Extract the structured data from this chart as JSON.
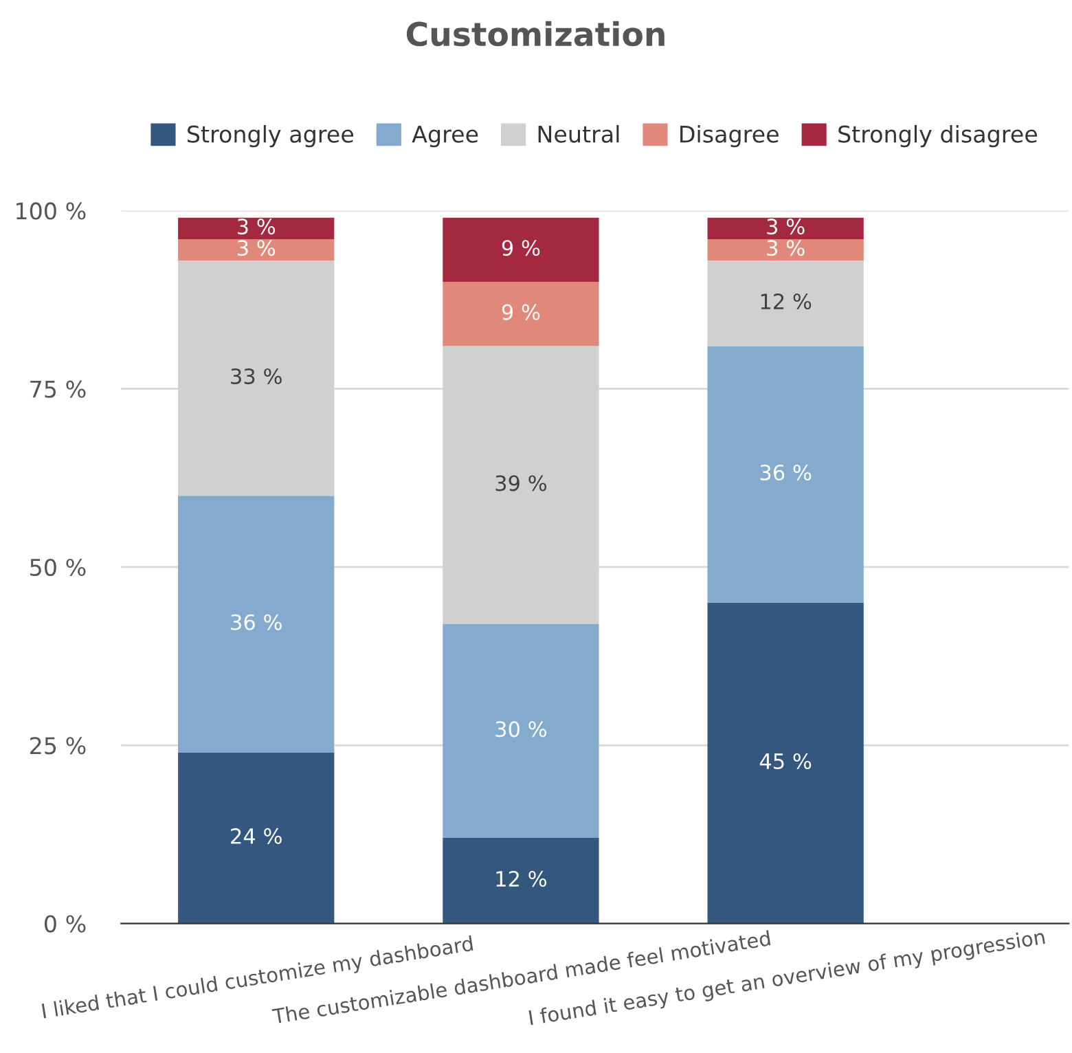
{
  "chart_data": {
    "type": "bar",
    "title": "Customization",
    "stacked": true,
    "categories": [
      "I liked that I could customize my dashboard",
      "The customizable dashboard made feel motivated",
      "I found it easy to get an overview of my progression"
    ],
    "series": [
      {
        "name": "Strongly agree",
        "color": "#34577f",
        "values": [
          24,
          12,
          45
        ],
        "value_labels": [
          "24 %",
          "12 %",
          "45 %"
        ]
      },
      {
        "name": "Agree",
        "color": "#84aacd",
        "values": [
          36,
          30,
          36
        ],
        "value_labels": [
          "36 %",
          "30 %",
          "36 %"
        ]
      },
      {
        "name": "Neutral",
        "color": "#d0d0d0",
        "values": [
          33,
          39,
          12
        ],
        "value_labels": [
          "33 %",
          "39 %",
          "12 %"
        ]
      },
      {
        "name": "Disagree",
        "color": "#e0887a",
        "values": [
          3,
          9,
          3
        ],
        "value_labels": [
          "3 %",
          "9 %",
          "3 %"
        ]
      },
      {
        "name": "Strongly disagree",
        "color": "#a4283f",
        "values": [
          3,
          9,
          3
        ],
        "value_labels": [
          "3 %",
          "9 %",
          "3 %"
        ]
      }
    ],
    "ylim": [
      0,
      100
    ],
    "yticks": [
      {
        "value": 0,
        "label": "0 %"
      },
      {
        "value": 25,
        "label": "25 %"
      },
      {
        "value": 50,
        "label": "50 %"
      },
      {
        "value": 75,
        "label": "75 %"
      },
      {
        "value": 100,
        "label": "100 %"
      }
    ],
    "grid": "y",
    "legend": "top"
  }
}
